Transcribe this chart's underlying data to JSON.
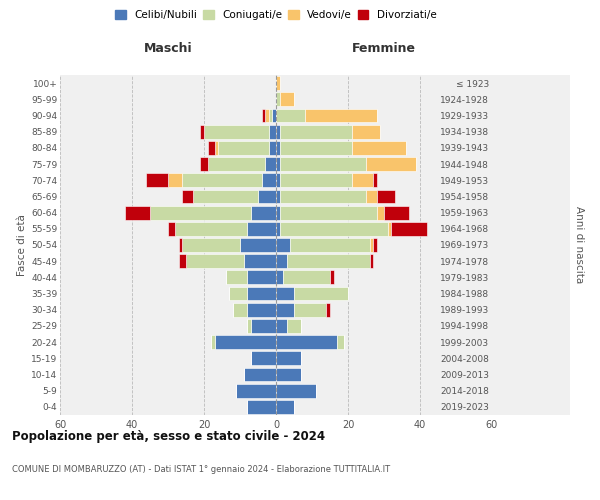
{
  "age_groups": [
    "0-4",
    "5-9",
    "10-14",
    "15-19",
    "20-24",
    "25-29",
    "30-34",
    "35-39",
    "40-44",
    "45-49",
    "50-54",
    "55-59",
    "60-64",
    "65-69",
    "70-74",
    "75-79",
    "80-84",
    "85-89",
    "90-94",
    "95-99",
    "100+"
  ],
  "birth_years": [
    "2019-2023",
    "2014-2018",
    "2009-2013",
    "2004-2008",
    "1999-2003",
    "1994-1998",
    "1989-1993",
    "1984-1988",
    "1979-1983",
    "1974-1978",
    "1969-1973",
    "1964-1968",
    "1959-1963",
    "1954-1958",
    "1949-1953",
    "1944-1948",
    "1939-1943",
    "1934-1938",
    "1929-1933",
    "1924-1928",
    "≤ 1923"
  ],
  "colors": {
    "celibinubili": "#4b79b8",
    "coniugati": "#c8daa4",
    "vedovi": "#f9c46b",
    "divorziati": "#c0000b"
  },
  "maschi": {
    "celibinubili": [
      8,
      11,
      9,
      7,
      17,
      7,
      8,
      8,
      8,
      9,
      10,
      8,
      7,
      5,
      4,
      3,
      2,
      2,
      1,
      0,
      0
    ],
    "coniugati": [
      0,
      0,
      0,
      0,
      1,
      1,
      4,
      5,
      6,
      16,
      16,
      20,
      28,
      18,
      22,
      16,
      14,
      18,
      1,
      0,
      0
    ],
    "vedovi": [
      0,
      0,
      0,
      0,
      0,
      0,
      0,
      0,
      0,
      0,
      0,
      0,
      0,
      0,
      4,
      0,
      1,
      0,
      1,
      0,
      0
    ],
    "divorziati": [
      0,
      0,
      0,
      0,
      0,
      0,
      0,
      0,
      0,
      2,
      1,
      2,
      7,
      3,
      6,
      2,
      2,
      1,
      1,
      0,
      0
    ]
  },
  "femmine": {
    "celibinubili": [
      5,
      11,
      7,
      7,
      17,
      3,
      5,
      5,
      2,
      3,
      4,
      1,
      1,
      1,
      1,
      1,
      1,
      1,
      0,
      0,
      0
    ],
    "coniugati": [
      0,
      0,
      0,
      0,
      2,
      4,
      9,
      15,
      13,
      23,
      22,
      30,
      27,
      24,
      20,
      24,
      20,
      20,
      8,
      1,
      0
    ],
    "vedovi": [
      0,
      0,
      0,
      0,
      0,
      0,
      0,
      0,
      0,
      0,
      1,
      1,
      2,
      3,
      6,
      14,
      15,
      8,
      20,
      4,
      1
    ],
    "divorziati": [
      0,
      0,
      0,
      0,
      0,
      0,
      1,
      0,
      1,
      1,
      1,
      10,
      7,
      5,
      1,
      0,
      0,
      0,
      0,
      0,
      0
    ]
  },
  "title1": "Popolazione per età, sesso e stato civile - 2024",
  "title2": "COMUNE DI MOMBARUZZO (AT) - Dati ISTAT 1° gennaio 2024 - Elaborazione TUTTITALIA.IT",
  "xlabel_left": "Maschi",
  "xlabel_right": "Femmine",
  "ylabel_left": "Fasce di età",
  "ylabel_right": "Anni di nascita",
  "legend_labels": [
    "Celibi/Nubili",
    "Coniugati/e",
    "Vedovi/e",
    "Divorziati/e"
  ],
  "xlim": 60,
  "background_color": "#f0f0f0"
}
